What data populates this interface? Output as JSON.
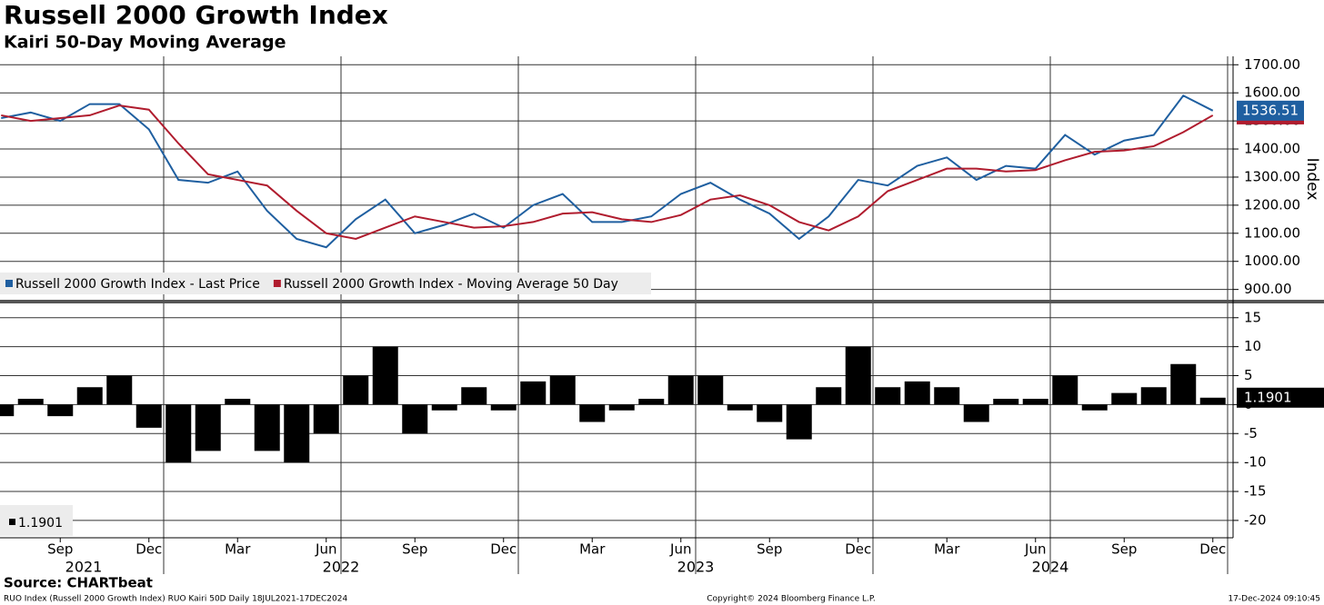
{
  "title": "Russell 2000 Growth Index",
  "subtitle": "Kairi 50-Day Moving Average",
  "footer": {
    "source": "Source: CHARTbeat",
    "left": "RUO Index (Russell 2000 Growth Index) RUO Kairi 50D  Daily 18JUL2021-17DEC2024",
    "center": "Copyright© 2024 Bloomberg Finance L.P.",
    "right": "17-Dec-2024 09:10:45"
  },
  "chart_data": [
    {
      "type": "line",
      "y_label": "Index",
      "x": [
        "2021-07",
        "2021-08",
        "2021-09",
        "2021-10",
        "2021-11",
        "2021-12",
        "2022-01",
        "2022-02",
        "2022-03",
        "2022-04",
        "2022-05",
        "2022-06",
        "2022-07",
        "2022-08",
        "2022-09",
        "2022-10",
        "2022-11",
        "2022-12",
        "2023-01",
        "2023-02",
        "2023-03",
        "2023-04",
        "2023-05",
        "2023-06",
        "2023-07",
        "2023-08",
        "2023-09",
        "2023-10",
        "2023-11",
        "2023-12",
        "2024-01",
        "2024-02",
        "2024-03",
        "2024-04",
        "2024-05",
        "2024-06",
        "2024-07",
        "2024-08",
        "2024-09",
        "2024-10",
        "2024-11",
        "2024-12"
      ],
      "series": [
        {
          "name": "Russell 2000 Growth Index - Last Price",
          "color": "#1f5fa0",
          "values": [
            1510,
            1530,
            1500,
            1560,
            1560,
            1470,
            1290,
            1280,
            1320,
            1180,
            1080,
            1050,
            1150,
            1220,
            1100,
            1130,
            1170,
            1120,
            1200,
            1240,
            1140,
            1140,
            1160,
            1240,
            1280,
            1220,
            1170,
            1080,
            1160,
            1290,
            1270,
            1340,
            1370,
            1290,
            1340,
            1330,
            1450,
            1380,
            1430,
            1450,
            1590,
            1536.51
          ]
        },
        {
          "name": "Russell 2000 Growth Index - Moving Average 50 Day",
          "color": "#b01c2e",
          "values": [
            1520,
            1500,
            1510,
            1520,
            1555,
            1540,
            1420,
            1310,
            1290,
            1270,
            1180,
            1100,
            1080,
            1120,
            1160,
            1140,
            1120,
            1125,
            1140,
            1170,
            1175,
            1150,
            1140,
            1165,
            1220,
            1235,
            1200,
            1140,
            1110,
            1160,
            1250,
            1290,
            1330,
            1330,
            1320,
            1325,
            1360,
            1390,
            1395,
            1410,
            1460,
            1520
          ]
        }
      ],
      "ylim": [
        860,
        1730
      ],
      "yticks": [
        {
          "value": 900,
          "label": "900.00"
        },
        {
          "value": 1000,
          "label": "1000.00"
        },
        {
          "value": 1100,
          "label": "1100.00"
        },
        {
          "value": 1200,
          "label": "1200.00"
        },
        {
          "value": 1300,
          "label": "1300.00"
        },
        {
          "value": 1400,
          "label": "1400.00"
        },
        {
          "value": 1500,
          "label": "1500.00"
        },
        {
          "value": 1600,
          "label": "1600.00"
        },
        {
          "value": 1700,
          "label": "1700.00"
        }
      ],
      "grid": true,
      "legend": "bottom-left"
    },
    {
      "type": "bar",
      "color": "#000000",
      "x": [
        "2021-07",
        "2021-08",
        "2021-09",
        "2021-10",
        "2021-11",
        "2021-12",
        "2022-01",
        "2022-02",
        "2022-03",
        "2022-04",
        "2022-05",
        "2022-06",
        "2022-07",
        "2022-08",
        "2022-09",
        "2022-10",
        "2022-11",
        "2022-12",
        "2023-01",
        "2023-02",
        "2023-03",
        "2023-04",
        "2023-05",
        "2023-06",
        "2023-07",
        "2023-08",
        "2023-09",
        "2023-10",
        "2023-11",
        "2023-12",
        "2024-01",
        "2024-02",
        "2024-03",
        "2024-04",
        "2024-05",
        "2024-06",
        "2024-07",
        "2024-08",
        "2024-09",
        "2024-10",
        "2024-11",
        "2024-12"
      ],
      "values": [
        -2,
        1,
        -2,
        3,
        5,
        -4,
        -10,
        -8,
        1,
        -8,
        -10,
        -5,
        5,
        10,
        -5,
        -1,
        3,
        -1,
        4,
        5,
        -3,
        -1,
        1,
        5,
        5,
        -1,
        -3,
        -6,
        3,
        10,
        3,
        4,
        3,
        -3,
        1,
        1,
        5,
        -1,
        2,
        3,
        7,
        1.1901
      ],
      "ylim": [
        -23,
        17
      ],
      "yticks": [
        15,
        10,
        5,
        0,
        -5,
        -10,
        -15,
        -20
      ],
      "grid": true,
      "xticks": [
        {
          "value": "2021-09",
          "label": "Sep"
        },
        {
          "value": "2021-12",
          "label": "Dec"
        },
        {
          "value": "2022-03",
          "label": "Mar"
        },
        {
          "value": "2022-06",
          "label": "Jun"
        },
        {
          "value": "2022-09",
          "label": "Sep"
        },
        {
          "value": "2022-12",
          "label": "Dec"
        },
        {
          "value": "2023-03",
          "label": "Mar"
        },
        {
          "value": "2023-06",
          "label": "Jun"
        },
        {
          "value": "2023-09",
          "label": "Sep"
        },
        {
          "value": "2023-12",
          "label": "Dec"
        },
        {
          "value": "2024-03",
          "label": "Mar"
        },
        {
          "value": "2024-06",
          "label": "Jun"
        },
        {
          "value": "2024-09",
          "label": "Sep"
        },
        {
          "value": "2024-12",
          "label": "Dec"
        }
      ],
      "years": [
        "2021",
        "2022",
        "2023",
        "2024"
      ],
      "xgrid": [
        "2022-01",
        "2022-07",
        "2023-01",
        "2023-07",
        "2024-01",
        "2024-07",
        "2025-01"
      ]
    }
  ]
}
